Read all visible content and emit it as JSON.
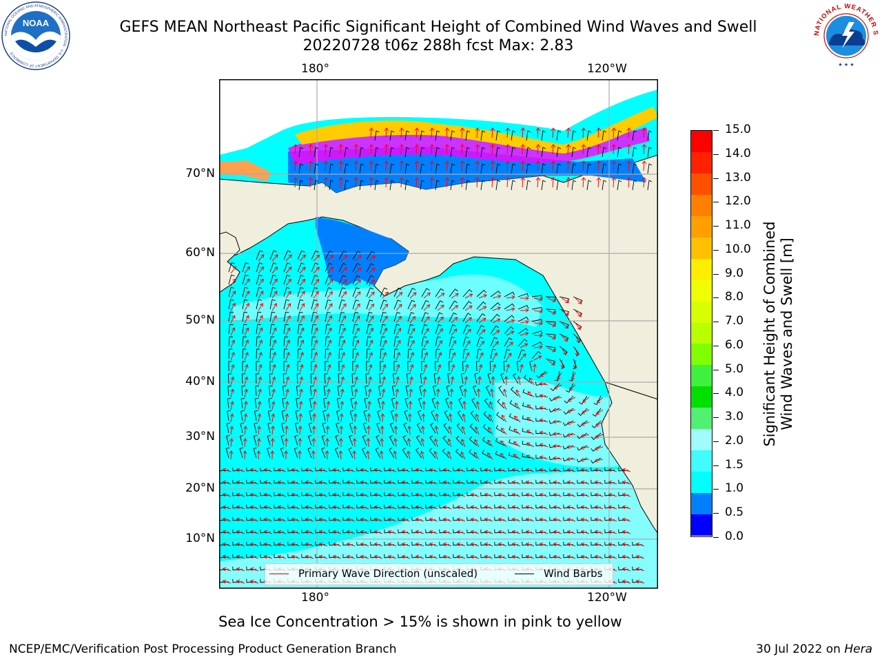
{
  "title": {
    "line1": "GEFS MEAN Northeast Pacific Significant Height of Combined Wind Waves and Swell",
    "line2": "20220728 t06z 288h fcst   Max: 2.83"
  },
  "logos": {
    "left": "NOAA",
    "left_ring": "NATIONAL OCEANIC AND ATMOSPHERIC ADMINISTRATION · U.S. DEPARTMENT OF COMMERCE",
    "right_ring": "NATIONAL WEATHER SERVICE"
  },
  "map": {
    "lon_labels": [
      "180°",
      "120°W"
    ],
    "lat_labels": [
      "70°N",
      "60°N",
      "50°N",
      "40°N",
      "30°N",
      "20°N",
      "10°N"
    ],
    "colors": {
      "land": "#f0eedd",
      "ocean_main": "#00ffff",
      "ocean_light": "#9cfdfd",
      "ocean_mid": "#40fbfb",
      "blue_shelf": "#0080ff",
      "deep_blue": "#0000ff",
      "ice_pink": "#ff60f0",
      "ice_magenta": "#ff00ff",
      "ice_yellow": "#ffcc00",
      "ice_orange": "#ffa050",
      "wave_arrow": "#ff0000",
      "wind_barb": "#000000",
      "grid": "#aaaaaa"
    }
  },
  "legend": {
    "wave": "Primary Wave Direction (unscaled)",
    "wind": "Wind Barbs",
    "wave_color": "#cc0000",
    "wind_color": "#000000"
  },
  "colorbar": {
    "ticks": [
      "15.0",
      "14.0",
      "13.0",
      "12.0",
      "11.0",
      "10.0",
      "9.0",
      "8.0",
      "7.0",
      "6.0",
      "5.0",
      "4.0",
      "3.0",
      "2.0",
      "1.5",
      "1.0",
      "0.5",
      "0.0"
    ],
    "colors_top_to_bottom": [
      "#ff0000",
      "#ff2200",
      "#ff5000",
      "#ff8000",
      "#ffa000",
      "#ffc000",
      "#ffee00",
      "#f0ff00",
      "#d8ff00",
      "#b8ff00",
      "#80ff00",
      "#40f040",
      "#00e000",
      "#50f070",
      "#a0fcfc",
      "#40fcfc",
      "#00ffff",
      "#0080ff",
      "#0000ff"
    ],
    "title_line1": "Significant Height of Combined",
    "title_line2": "Wind Waves and Swell [m]"
  },
  "caption": "Sea Ice Concentration > 15% is shown in pink to yellow",
  "footer": {
    "left": "NCEP/EMC/Verification Post Processing Product Generation Branch",
    "right_date": "30 Jul 2022 on ",
    "right_machine": "Hera"
  }
}
